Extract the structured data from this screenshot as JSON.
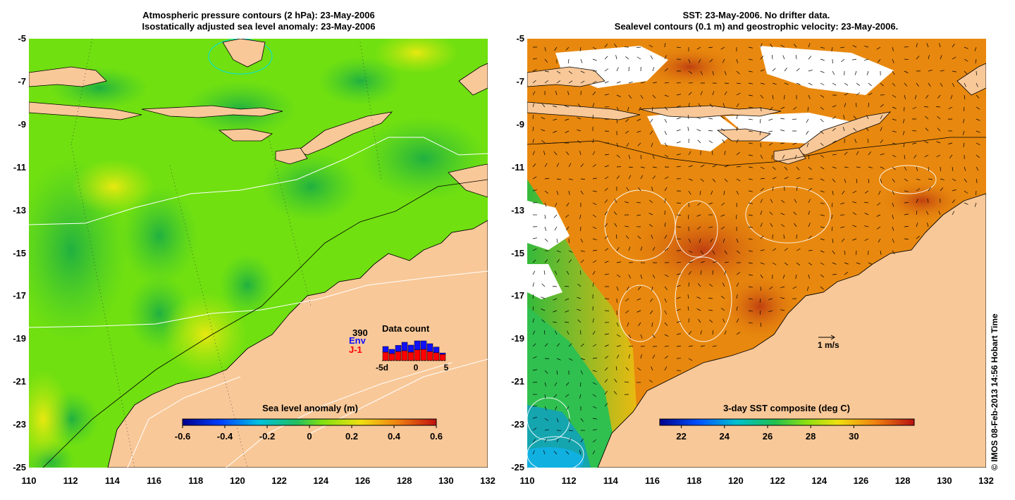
{
  "left_panel": {
    "title_line1": "Atmospheric pressure contours (2 hPa): 23-May-2006",
    "title_line2": "Isostatically adjusted sea level anomaly: 23-May-2006",
    "colorbar_title": "Sea level anomaly (m)",
    "colorbar_ticks": [
      "-0.6",
      "-0.4",
      "-0.2",
      "0",
      "0.2",
      "0.4",
      "0.6"
    ],
    "inset": {
      "total": "390",
      "env_label": "Env",
      "j1_label": "J-1",
      "title": "Data count",
      "x_ticks": [
        "-5d",
        "0",
        "5"
      ]
    }
  },
  "right_panel": {
    "title_line1": "SST: 23-May-2006. No drifter data.",
    "title_line2": "Sealevel contours (0.1 m) and geostrophic velocity: 23-May-2006.",
    "colorbar_title": "3-day SST composite (deg C)",
    "colorbar_ticks": [
      "22",
      "24",
      "26",
      "28",
      "30"
    ],
    "scale_label": "1 m/s"
  },
  "axes": {
    "lat_ticks": [
      "-5",
      "-7",
      "-9",
      "-11",
      "-13",
      "-15",
      "-17",
      "-19",
      "-21",
      "-23",
      "-25"
    ],
    "lon_ticks": [
      "110",
      "112",
      "114",
      "116",
      "118",
      "120",
      "122",
      "124",
      "126",
      "128",
      "130",
      "132"
    ]
  },
  "credit": "© IMOS 08-Feb-2013 14:56 Hobart Time",
  "colors": {
    "land": "#f9c898",
    "ocean_green": "#6ee010",
    "ocean_dark": "#34c22c",
    "sst_orange": "#e8880e",
    "sst_red": "#c84010",
    "env_bar": "#1010ff",
    "j1_bar": "#ff0000"
  }
}
